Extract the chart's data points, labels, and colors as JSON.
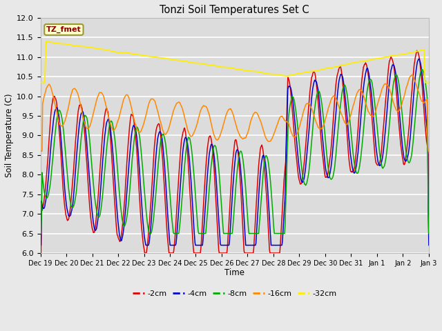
{
  "title": "Tonzi Soil Temperatures Set C",
  "xlabel": "Time",
  "ylabel": "Soil Temperature (C)",
  "ylim": [
    6.0,
    12.0
  ],
  "yticks": [
    6.0,
    6.5,
    7.0,
    7.5,
    8.0,
    8.5,
    9.0,
    9.5,
    10.0,
    10.5,
    11.0,
    11.5,
    12.0
  ],
  "fig_facecolor": "#e8e8e8",
  "ax_facecolor": "#dcdcdc",
  "grid_color": "#ffffff",
  "line_colors": {
    "-2cm": "#dd0000",
    "-4cm": "#0000cc",
    "-8cm": "#00aa00",
    "-16cm": "#ff8800",
    "-32cm": "#ffee00"
  },
  "legend_label": "TZ_fmet",
  "legend_label_color": "#880000",
  "legend_box_facecolor": "#ffffcc",
  "legend_box_edgecolor": "#999933",
  "xtick_labels": [
    "Dec 19",
    "Dec 20",
    "Dec 21",
    "Dec 22",
    "Dec 23",
    "Dec 24",
    "Dec 25",
    "Dec 26",
    "Dec 27",
    "Dec 28",
    "Dec 29",
    "Dec 30",
    "Dec 31",
    "Jan 1",
    "Jan 2",
    "Jan 3"
  ],
  "n_days": 15,
  "pts_per_day": 48
}
